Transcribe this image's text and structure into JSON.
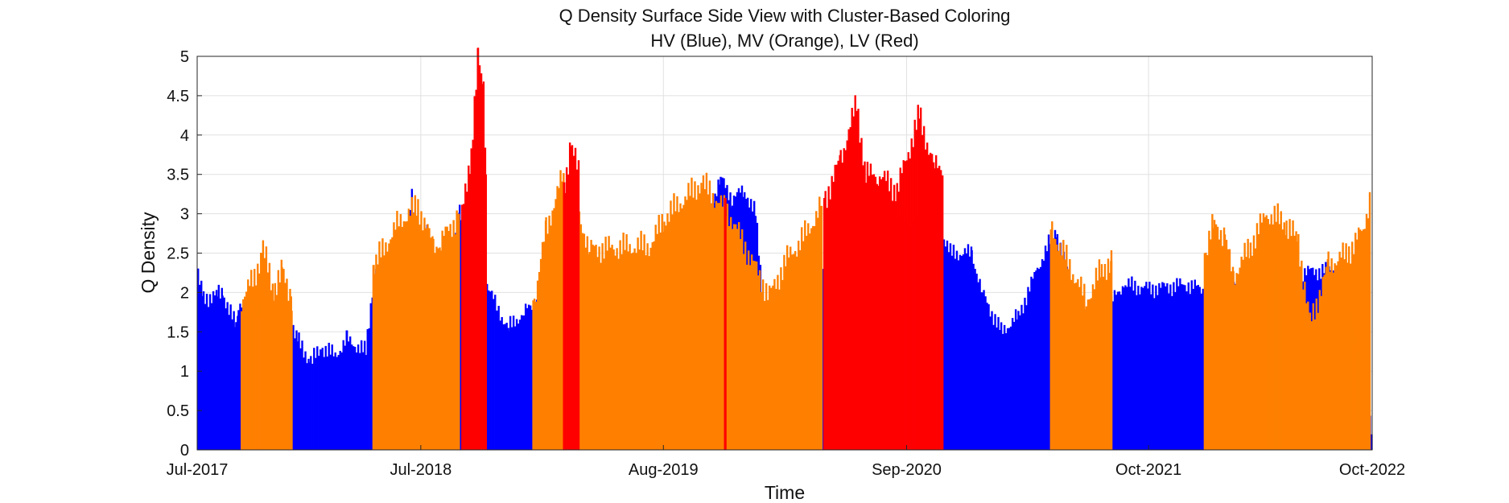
{
  "chart_data": {
    "type": "area",
    "title": "Q Density Surface Side View with Cluster-Based Coloring",
    "subtitle": "HV (Blue), MV (Orange), LV (Red)",
    "xlabel": "Time",
    "ylabel": "Q Density",
    "xlim": [
      "2017-07-01",
      "2022-10-01"
    ],
    "ylim": [
      0,
      5
    ],
    "x_ticks": [
      {
        "date": "2017-07-01",
        "label": "Jul-2017"
      },
      {
        "date": "2018-07-01",
        "label": "Jul-2018"
      },
      {
        "date": "2019-08-01",
        "label": "Aug-2019"
      },
      {
        "date": "2020-09-01",
        "label": "Sep-2020"
      },
      {
        "date": "2021-10-01",
        "label": "Oct-2021"
      },
      {
        "date": "2022-10-01",
        "label": "Oct-2022"
      }
    ],
    "y_ticks": [
      0,
      0.5,
      1,
      1.5,
      2,
      2.5,
      3,
      3.5,
      4,
      4.5,
      5
    ],
    "y_tick_labels": [
      "0",
      "0.5",
      "1",
      "1.5",
      "2",
      "2.5",
      "3",
      "3.5",
      "4",
      "4.5",
      "5"
    ],
    "grid": true,
    "colors": {
      "HV": "#0000ff",
      "MV": "#ff8000",
      "LV": "#ff0000"
    },
    "series": [
      {
        "name": "HV",
        "values": [
          [
            "2017-07-01",
            2.2
          ],
          [
            "2017-07-10",
            1.93
          ],
          [
            "2017-08-01",
            1.97
          ],
          [
            "2017-08-10",
            2.0
          ],
          [
            "2017-09-01",
            1.57
          ],
          [
            "2017-09-05",
            1.85
          ],
          [
            "2017-09-15",
            1.9
          ],
          [
            "2017-10-01",
            1.8
          ],
          [
            "2017-11-15",
            1.9
          ],
          [
            "2017-12-10",
            1.4
          ],
          [
            "2018-01-01",
            1.12
          ],
          [
            "2018-01-20",
            1.3
          ],
          [
            "2018-02-10",
            1.2
          ],
          [
            "2018-03-01",
            1.4
          ],
          [
            "2018-04-01",
            1.25
          ],
          [
            "2018-04-15",
            2.3
          ],
          [
            "2018-05-01",
            1.9
          ],
          [
            "2018-05-10",
            2.25
          ],
          [
            "2018-05-25",
            2.55
          ],
          [
            "2018-06-05",
            2.7
          ],
          [
            "2018-06-15",
            3.2
          ],
          [
            "2018-06-25",
            2.6
          ],
          [
            "2018-07-10",
            2.75
          ],
          [
            "2018-07-20",
            2.3
          ],
          [
            "2018-08-10",
            2.35
          ],
          [
            "2018-09-01",
            3.0
          ],
          [
            "2018-11-01",
            1.8
          ],
          [
            "2018-11-20",
            1.55
          ],
          [
            "2018-12-15",
            1.75
          ],
          [
            "2019-03-01",
            2.2
          ],
          [
            "2019-04-01",
            2.1
          ],
          [
            "2019-04-10",
            2.45
          ],
          [
            "2019-04-25",
            1.55
          ],
          [
            "2019-05-20",
            2.0
          ],
          [
            "2019-06-10",
            2.2
          ],
          [
            "2019-07-01",
            2.35
          ],
          [
            "2019-09-01",
            2.6
          ],
          [
            "2019-09-15",
            2.9
          ],
          [
            "2019-10-15",
            3.1
          ],
          [
            "2019-11-01",
            3.45
          ],
          [
            "2019-11-20",
            3.2
          ],
          [
            "2019-12-10",
            3.3
          ],
          [
            "2019-12-28",
            3.0
          ],
          [
            "2020-01-15",
            1.4
          ],
          [
            "2020-07-10",
            2.95
          ],
          [
            "2020-09-01",
            2.9
          ],
          [
            "2020-10-20",
            2.9
          ],
          [
            "2020-11-10",
            2.5
          ],
          [
            "2020-12-15",
            2.5
          ],
          [
            "2021-01-01",
            2.0
          ],
          [
            "2021-02-01",
            1.5
          ],
          [
            "2021-03-01",
            1.7
          ],
          [
            "2021-04-01",
            2.3
          ],
          [
            "2021-05-01",
            2.8
          ],
          [
            "2021-06-10",
            1.6
          ],
          [
            "2021-07-15",
            1.7
          ],
          [
            "2021-08-20",
            2.1
          ],
          [
            "2021-10-01",
            2.05
          ],
          [
            "2021-12-01",
            2.1
          ],
          [
            "2022-01-15",
            2.0
          ],
          [
            "2022-03-01",
            2.2
          ],
          [
            "2022-08-15",
            2.3
          ],
          [
            "2022-10-01",
            0.15
          ]
        ]
      },
      {
        "name": "MV",
        "values": [
          [
            "2017-09-10",
            1.9
          ],
          [
            "2017-10-01",
            2.2
          ],
          [
            "2017-10-15",
            2.55
          ],
          [
            "2017-11-01",
            2.05
          ],
          [
            "2017-11-15",
            2.25
          ],
          [
            "2017-12-01",
            1.95
          ],
          [
            "2018-04-15",
            2.35
          ],
          [
            "2018-05-25",
            2.9
          ],
          [
            "2018-06-25",
            3.1
          ],
          [
            "2018-07-20",
            2.6
          ],
          [
            "2018-08-01",
            2.65
          ],
          [
            "2018-09-01",
            3.0
          ],
          [
            "2019-01-01",
            1.9
          ],
          [
            "2019-01-20",
            2.8
          ],
          [
            "2019-02-15",
            3.45
          ],
          [
            "2019-03-10",
            3.1
          ],
          [
            "2019-04-01",
            2.55
          ],
          [
            "2019-07-10",
            2.6
          ],
          [
            "2019-08-01",
            2.95
          ],
          [
            "2019-10-01",
            3.4
          ],
          [
            "2019-11-15",
            3.0
          ],
          [
            "2020-01-20",
            1.95
          ],
          [
            "2020-02-15",
            2.4
          ],
          [
            "2020-03-15",
            2.7
          ],
          [
            "2020-04-15",
            3.1
          ],
          [
            "2021-04-25",
            2.8
          ],
          [
            "2021-06-20",
            1.9
          ],
          [
            "2021-07-15",
            2.3
          ],
          [
            "2021-08-01",
            2.4
          ],
          [
            "2022-01-01",
            2.5
          ],
          [
            "2022-01-15",
            2.9
          ],
          [
            "2022-02-01",
            2.7
          ],
          [
            "2022-02-15",
            2.2
          ],
          [
            "2022-03-15",
            2.6
          ],
          [
            "2022-04-10",
            3.0
          ],
          [
            "2022-05-10",
            2.9
          ],
          [
            "2022-06-01",
            2.65
          ],
          [
            "2022-06-20",
            1.6
          ],
          [
            "2022-07-20",
            2.35
          ],
          [
            "2022-08-20",
            2.5
          ],
          [
            "2022-09-15",
            2.8
          ],
          [
            "2022-09-28",
            3.3
          ]
        ]
      },
      {
        "name": "LV",
        "values": [
          [
            "2018-09-05",
            3.0
          ],
          [
            "2018-09-20",
            3.8
          ],
          [
            "2018-10-01",
            4.97
          ],
          [
            "2018-10-10",
            4.6
          ],
          [
            "2018-10-15",
            3.5
          ],
          [
            "2019-02-20",
            3.4
          ],
          [
            "2019-03-01",
            3.9
          ],
          [
            "2019-03-15",
            3.5
          ],
          [
            "2019-11-10",
            3.2
          ],
          [
            "2020-04-20",
            3.2
          ],
          [
            "2020-05-15",
            3.7
          ],
          [
            "2020-06-10",
            4.4
          ],
          [
            "2020-06-25",
            3.5
          ],
          [
            "2020-07-15",
            3.5
          ],
          [
            "2020-08-15",
            3.3
          ],
          [
            "2020-09-20",
            4.25
          ],
          [
            "2020-10-15",
            3.6
          ],
          [
            "2020-10-30",
            3.6
          ]
        ]
      }
    ]
  }
}
